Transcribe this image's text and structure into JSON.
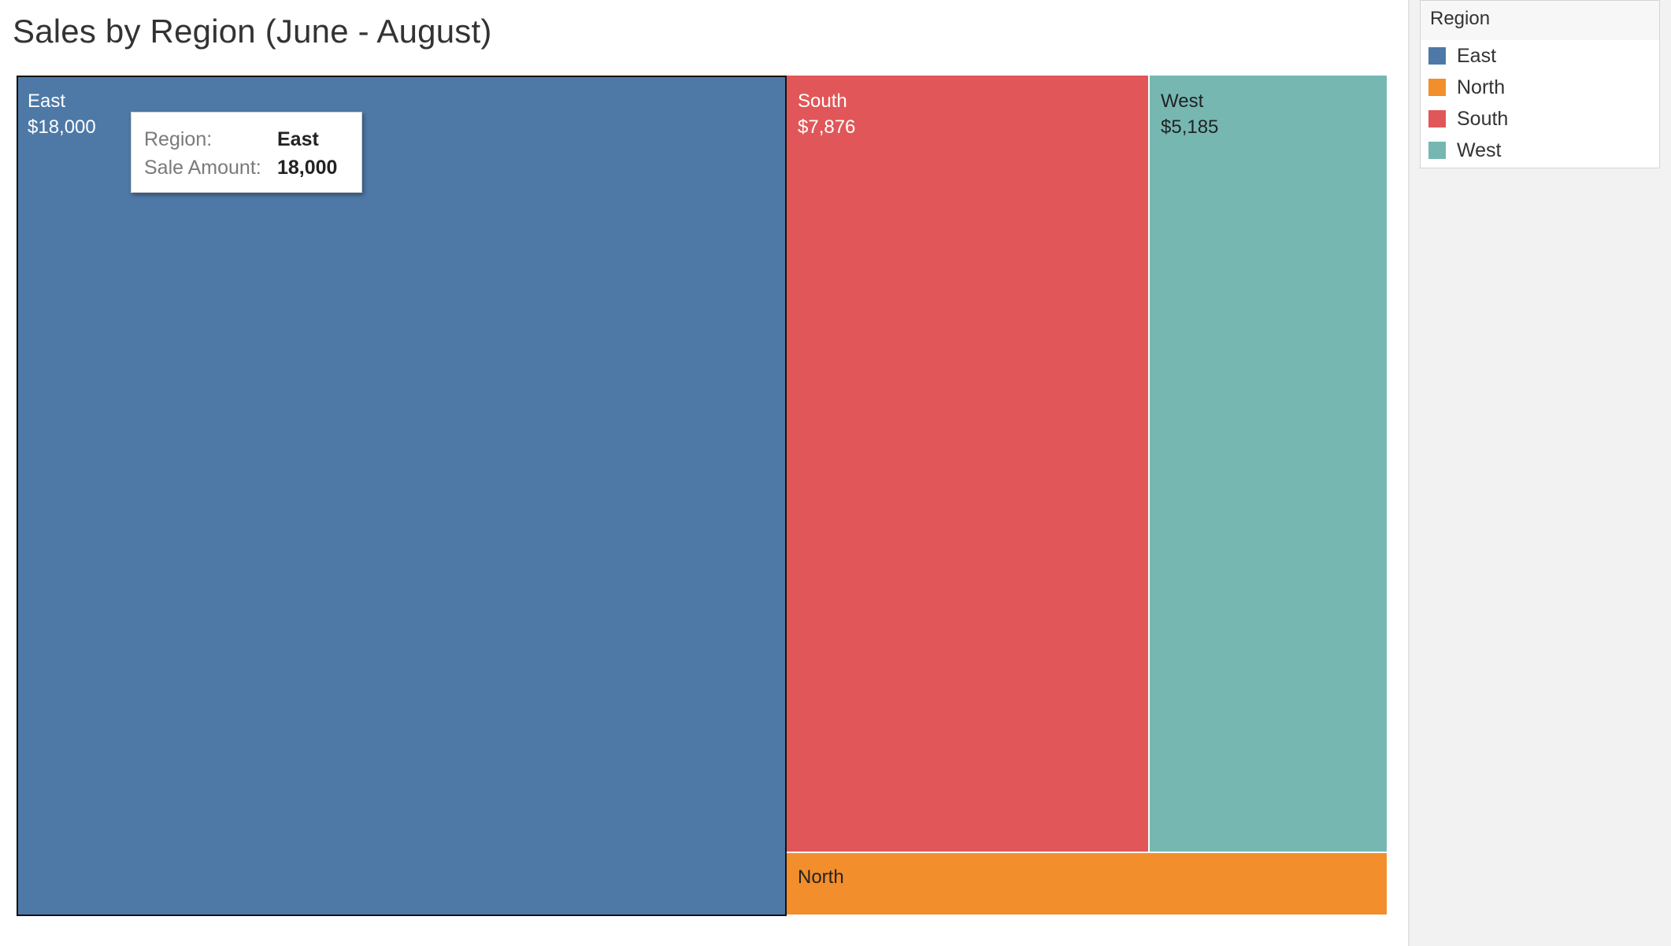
{
  "title": "Sales by Region (June - August)",
  "chart_data": {
    "type": "treemap",
    "title": "Sales by Region (June - August)",
    "measure": "Sale Amount",
    "dimension": "Region",
    "items": [
      {
        "name": "East",
        "value": 18000,
        "label": "$18,000",
        "color": "#4e79a7",
        "text_color": "#ffffff",
        "selected": true
      },
      {
        "name": "South",
        "value": 7876,
        "label": "$7,876",
        "color": "#e15759",
        "text_color": "#ffffff",
        "selected": false
      },
      {
        "name": "West",
        "value": 5185,
        "label": "$5,185",
        "color": "#76b7b2",
        "text_color": "#222222",
        "selected": false
      },
      {
        "name": "North",
        "value": null,
        "label": "",
        "color": "#f28e2b",
        "text_color": "#222222",
        "selected": false
      }
    ]
  },
  "tooltip": {
    "rows": [
      {
        "key": "Region:",
        "value": "East"
      },
      {
        "key": "Sale Amount:",
        "value": "18,000"
      }
    ]
  },
  "legend": {
    "title": "Region",
    "items": [
      {
        "label": "East",
        "color": "#4e79a7"
      },
      {
        "label": "North",
        "color": "#f28e2b"
      },
      {
        "label": "South",
        "color": "#e15759"
      },
      {
        "label": "West",
        "color": "#76b7b2"
      }
    ]
  }
}
